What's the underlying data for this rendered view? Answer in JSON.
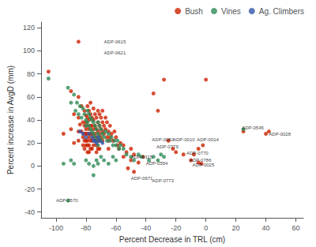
{
  "chart_data": {
    "type": "scatter",
    "xlabel": "Percent Decrease in TRL (cm)",
    "ylabel": "Percent increase in AvgD (mm)",
    "xlim": [
      -110,
      65
    ],
    "ylim": [
      -45,
      125
    ],
    "xticks": [
      -100,
      -80,
      -60,
      -40,
      -20,
      0,
      20,
      40,
      60
    ],
    "yticks": [
      -40,
      -20,
      0,
      20,
      40,
      60,
      80,
      100,
      120
    ],
    "grid": false,
    "legend": "upper right",
    "series": [
      {
        "name": "Bush",
        "color": "#cc2200",
        "values": [
          [
            -105,
            82
          ],
          [
            -95,
            28
          ],
          [
            -90,
            65
          ],
          [
            -90,
            32
          ],
          [
            -88,
            45
          ],
          [
            -88,
            20
          ],
          [
            -85,
            108
          ],
          [
            -85,
            60
          ],
          [
            -85,
            42
          ],
          [
            -85,
            30
          ],
          [
            -85,
            22
          ],
          [
            -84,
            36
          ],
          [
            -83,
            52
          ],
          [
            -83,
            30
          ],
          [
            -82,
            38
          ],
          [
            -82,
            25
          ],
          [
            -82,
            18
          ],
          [
            -81,
            48
          ],
          [
            -81,
            35
          ],
          [
            -81,
            28
          ],
          [
            -81,
            22
          ],
          [
            -81,
            15
          ],
          [
            -80,
            44
          ],
          [
            -80,
            38
          ],
          [
            -80,
            32
          ],
          [
            -80,
            28
          ],
          [
            -80,
            22
          ],
          [
            -80,
            18
          ],
          [
            -79,
            52
          ],
          [
            -79,
            42
          ],
          [
            -79,
            35
          ],
          [
            -79,
            28
          ],
          [
            -79,
            22
          ],
          [
            -79,
            18
          ],
          [
            -79,
            12
          ],
          [
            -78,
            48
          ],
          [
            -78,
            40
          ],
          [
            -78,
            32
          ],
          [
            -78,
            25
          ],
          [
            -78,
            18
          ],
          [
            -78,
            12
          ],
          [
            -77,
            55
          ],
          [
            -77,
            45
          ],
          [
            -77,
            35
          ],
          [
            -77,
            28
          ],
          [
            -77,
            22
          ],
          [
            -77,
            15
          ],
          [
            -76,
            42
          ],
          [
            -76,
            35
          ],
          [
            -76,
            28
          ],
          [
            -76,
            22
          ],
          [
            -76,
            15
          ],
          [
            -75,
            50
          ],
          [
            -75,
            40
          ],
          [
            -75,
            32
          ],
          [
            -75,
            25
          ],
          [
            -75,
            18
          ],
          [
            -74,
            45
          ],
          [
            -74,
            35
          ],
          [
            -74,
            28
          ],
          [
            -74,
            22
          ],
          [
            -73,
            42
          ],
          [
            -73,
            32
          ],
          [
            -73,
            25
          ],
          [
            -73,
            18
          ],
          [
            -73,
            12
          ],
          [
            -72,
            48
          ],
          [
            -72,
            38
          ],
          [
            -72,
            30
          ],
          [
            -72,
            22
          ],
          [
            -72,
            15
          ],
          [
            -71,
            45
          ],
          [
            -71,
            35
          ],
          [
            -71,
            28
          ],
          [
            -71,
            22
          ],
          [
            -71,
            15
          ],
          [
            -70,
            42
          ],
          [
            -70,
            32
          ],
          [
            -70,
            25
          ],
          [
            -69,
            48
          ],
          [
            -69,
            38
          ],
          [
            -69,
            30
          ],
          [
            -69,
            22
          ],
          [
            -68,
            35
          ],
          [
            -68,
            28
          ],
          [
            -67,
            42
          ],
          [
            -67,
            32
          ],
          [
            -66,
            38
          ],
          [
            -66,
            25
          ],
          [
            -65,
            30
          ],
          [
            -65,
            22
          ],
          [
            -65,
            15
          ],
          [
            -64,
            35
          ],
          [
            -64,
            25
          ],
          [
            -63,
            28
          ],
          [
            -62,
            22
          ],
          [
            -61,
            30
          ],
          [
            -60,
            25
          ],
          [
            -59,
            18
          ],
          [
            -58,
            15
          ],
          [
            -57,
            20
          ],
          [
            -55,
            18
          ],
          [
            -53,
            12
          ],
          [
            -50,
            15
          ],
          [
            -48,
            10
          ],
          [
            -50,
            5
          ],
          [
            -55,
            8
          ],
          [
            -52,
            -2
          ],
          [
            -48,
            -5
          ],
          [
            -45,
            3
          ],
          [
            -42,
            8
          ],
          [
            -35,
            63
          ],
          [
            -32,
            48
          ],
          [
            -28,
            75
          ],
          [
            -25,
            22
          ],
          [
            -22,
            15
          ],
          [
            -20,
            12
          ],
          [
            -15,
            10
          ],
          [
            -10,
            5
          ],
          [
            -5,
            3
          ],
          [
            -3,
            2
          ],
          [
            -5,
            15
          ],
          [
            0,
            75
          ],
          [
            -2,
            18
          ],
          [
            -8,
            10
          ],
          [
            25,
            30
          ],
          [
            40,
            28
          ],
          [
            42,
            30
          ]
        ]
      },
      {
        "name": "Vines",
        "color": "#2e8b57",
        "values": [
          [
            -105,
            76
          ],
          [
            -92,
            68
          ],
          [
            -90,
            55
          ],
          [
            -88,
            62
          ],
          [
            -87,
            48
          ],
          [
            -86,
            55
          ],
          [
            -85,
            45
          ],
          [
            -84,
            52
          ],
          [
            -83,
            42
          ],
          [
            -82,
            50
          ],
          [
            -81,
            45
          ],
          [
            -80,
            40
          ],
          [
            -80,
            35
          ],
          [
            -79,
            48
          ],
          [
            -79,
            38
          ],
          [
            -78,
            45
          ],
          [
            -78,
            35
          ],
          [
            -77,
            42
          ],
          [
            -77,
            32
          ],
          [
            -76,
            40
          ],
          [
            -76,
            30
          ],
          [
            -75,
            38
          ],
          [
            -75,
            28
          ],
          [
            -74,
            35
          ],
          [
            -74,
            25
          ],
          [
            -73,
            32
          ],
          [
            -73,
            22
          ],
          [
            -72,
            38
          ],
          [
            -72,
            28
          ],
          [
            -72,
            18
          ],
          [
            -71,
            35
          ],
          [
            -71,
            25
          ],
          [
            -70,
            32
          ],
          [
            -70,
            22
          ],
          [
            -69,
            28
          ],
          [
            -68,
            25
          ],
          [
            -67,
            30
          ],
          [
            -66,
            22
          ],
          [
            -65,
            28
          ],
          [
            -64,
            22
          ],
          [
            -63,
            25
          ],
          [
            -62,
            18
          ],
          [
            -61,
            22
          ],
          [
            -60,
            18
          ],
          [
            -59,
            22
          ],
          [
            -58,
            15
          ],
          [
            -57,
            18
          ],
          [
            -55,
            15
          ],
          [
            -53,
            10
          ],
          [
            -50,
            8
          ],
          [
            -48,
            5
          ],
          [
            -45,
            10
          ],
          [
            -43,
            8
          ],
          [
            -80,
            5
          ],
          [
            -78,
            2
          ],
          [
            -75,
            0
          ],
          [
            -73,
            5
          ],
          [
            -72,
            2
          ],
          [
            -70,
            8
          ],
          [
            -68,
            5
          ],
          [
            -65,
            2
          ],
          [
            -62,
            8
          ],
          [
            -60,
            5
          ],
          [
            -38,
            5
          ],
          [
            -35,
            8
          ],
          [
            -32,
            5
          ],
          [
            -30,
            10
          ],
          [
            -28,
            8
          ],
          [
            -95,
            2
          ],
          [
            -90,
            5
          ],
          [
            -88,
            2
          ],
          [
            -92,
            -30
          ],
          [
            -75,
            -8
          ],
          [
            25,
            32
          ]
        ]
      },
      {
        "name": "Ag. Climbers",
        "color": "#3355aa",
        "values": [
          [
            -84,
            30
          ],
          [
            -82,
            28
          ],
          [
            -80,
            25
          ],
          [
            -78,
            28
          ],
          [
            -76,
            25
          ],
          [
            -74,
            22
          ],
          [
            -72,
            25
          ],
          [
            -75,
            22
          ],
          [
            -73,
            20
          ],
          [
            -71,
            22
          ],
          [
            -69,
            20
          ]
        ]
      }
    ],
    "annotations": [
      {
        "label": "ADP-0615",
        "x": -68,
        "y": 108
      },
      {
        "label": "ADP-0621",
        "x": -68,
        "y": 98
      },
      {
        "label": "ADP-0050",
        "x": -36,
        "y": 23
      },
      {
        "label": "ADP-0010",
        "x": -22,
        "y": 23
      },
      {
        "label": "ADP-0014",
        "x": -6,
        "y": 23
      },
      {
        "label": "ADP-0779",
        "x": -33,
        "y": 17
      },
      {
        "label": "ADP-0115",
        "x": -50,
        "y": 8
      },
      {
        "label": "ADP-0554",
        "x": -40,
        "y": 2
      },
      {
        "label": "ADP-0770",
        "x": -13,
        "y": 11
      },
      {
        "label": "ADP-0786",
        "x": -11,
        "y": 5
      },
      {
        "label": "ADP-0025",
        "x": -9,
        "y": 1
      },
      {
        "label": "ADP-0671",
        "x": -50,
        "y": -11
      },
      {
        "label": "ADP-0773",
        "x": -36,
        "y": -13
      },
      {
        "label": "ADP-0570",
        "x": -100,
        "y": -30
      },
      {
        "label": "ADP-0545",
        "x": 24,
        "y": 33
      },
      {
        "label": "ADP-0028",
        "x": 42,
        "y": 28
      }
    ]
  }
}
